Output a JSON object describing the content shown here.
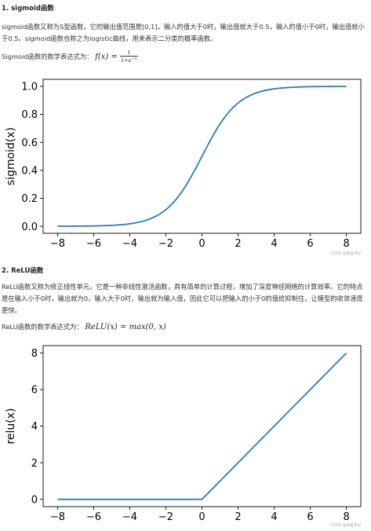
{
  "sections": [
    {
      "heading": "1. sigmoid函数",
      "paragraph_1": "sigmoid函数又称为S型函数，它的输出值范围是[0,1]，输入的值大于0时，输出值就大于0.5，输入的值小于0时，输出值就小于0.5。sigmoid函数也称之为logistic曲线，用来表示二分类的概率函数。",
      "formula_label": "Sigmoid函数的数学表达式为：",
      "formula_lhs": "f(x) =",
      "formula_num": "1",
      "formula_den": "1+e",
      "formula_den_exp": "−x"
    },
    {
      "heading": "2. ReLU函数",
      "paragraph_1": "ReLU函数又称为修正线性单元，它是一种非线性激活函数，具有简单的计算过程，增加了深度神经网络的计算效率。它的特点是在输入小于0时，输出就为0，输入大于0时，输出就为输入值，因此它可以把输入的小于0的值给抑制住，让模型的收敛速度更快。",
      "formula_label": "ReLU函数的数学表达式为：",
      "formula": "ReLU(x) = max(0, x)"
    }
  ],
  "chart_data": [
    {
      "type": "line",
      "title": "",
      "xlabel": "",
      "ylabel": "sigmoid(x)",
      "xlim": [
        -8,
        8
      ],
      "ylim": [
        0,
        1
      ],
      "x_ticks": [
        "−8",
        "−6",
        "−4",
        "−2",
        "0",
        "2",
        "4",
        "6",
        "8"
      ],
      "y_ticks": [
        "0.0",
        "0.2",
        "0.4",
        "0.6",
        "0.8",
        "1.0"
      ],
      "series": [
        {
          "x": [
            -8,
            -7,
            -6,
            -5,
            -4,
            -3,
            -2,
            -1,
            0,
            1,
            2,
            3,
            4,
            5,
            6,
            7,
            8
          ],
          "y": [
            0.0003,
            0.0009,
            0.0025,
            0.0067,
            0.018,
            0.047,
            0.119,
            0.269,
            0.5,
            0.731,
            0.881,
            0.953,
            0.982,
            0.993,
            0.998,
            0.999,
            1.0
          ]
        }
      ],
      "color": "#2e7ab6",
      "watermark": "CSDN @我爱学ai"
    },
    {
      "type": "line",
      "title": "",
      "xlabel": "",
      "ylabel": "relu(x)",
      "xlim": [
        -8,
        8
      ],
      "ylim": [
        0,
        8
      ],
      "x_ticks": [
        "−8",
        "−6",
        "−4",
        "−2",
        "0",
        "2",
        "4",
        "6",
        "8"
      ],
      "y_ticks": [
        "0",
        "2",
        "4",
        "6",
        "8"
      ],
      "series": [
        {
          "x": [
            -8,
            0,
            8
          ],
          "y": [
            0,
            0,
            8
          ]
        }
      ],
      "color": "#2e7ab6",
      "watermark": "CSDN @我爱学ai"
    }
  ]
}
